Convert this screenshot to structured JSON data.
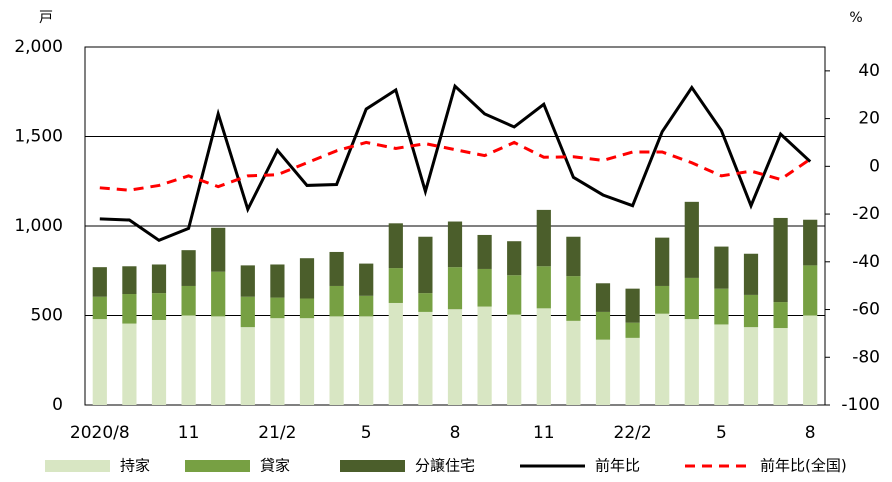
{
  "chart_data": {
    "type": "bar",
    "y_label": "戸",
    "y2_label": "%",
    "categories": [
      "2020/8",
      null,
      null,
      "11",
      null,
      null,
      "21/2",
      null,
      null,
      "5",
      null,
      null,
      "8",
      null,
      null,
      "11",
      null,
      null,
      "22/2",
      null,
      null,
      "5",
      null,
      null,
      "8"
    ],
    "series": [
      {
        "name": "持家",
        "color": "#d8e6c3",
        "values": [
          480,
          455,
          475,
          500,
          495,
          435,
          485,
          485,
          495,
          495,
          570,
          520,
          535,
          550,
          505,
          540,
          470,
          365,
          375,
          510,
          480,
          450,
          435,
          430,
          500
        ]
      },
      {
        "name": "貸家",
        "color": "#77a043",
        "values": [
          125,
          165,
          150,
          165,
          250,
          170,
          115,
          110,
          170,
          115,
          195,
          105,
          235,
          210,
          220,
          235,
          250,
          155,
          85,
          155,
          230,
          200,
          180,
          145,
          280
        ]
      },
      {
        "name": "分譲住宅",
        "color": "#4b5e2b",
        "values": [
          165,
          155,
          160,
          200,
          245,
          175,
          185,
          225,
          190,
          180,
          250,
          315,
          255,
          190,
          190,
          315,
          220,
          160,
          190,
          270,
          425,
          235,
          230,
          470,
          255
        ]
      },
      {
        "name": "前年比",
        "type": "line",
        "axis": "y2",
        "color": "#000000",
        "values": [
          -22,
          -22.5,
          -31,
          -26,
          22,
          -18,
          6.7,
          -8,
          -7.6,
          24,
          32,
          -10.5,
          33.6,
          22,
          16.5,
          26,
          -4.6,
          -12,
          -16.5,
          14.5,
          33,
          15,
          -16.5,
          13.5,
          2
        ]
      },
      {
        "name": "前年比(全国)",
        "type": "line",
        "axis": "y2",
        "dashed": true,
        "color": "#ff0000",
        "values": [
          -9,
          -10,
          -8,
          -4,
          -8.5,
          -4,
          -3.5,
          1.5,
          6.5,
          10,
          7.5,
          9.5,
          7,
          4.5,
          10,
          3.8,
          4,
          2.5,
          6,
          6,
          1.5,
          -4,
          -2,
          -5.5,
          3
        ]
      }
    ],
    "ylim": [
      0,
      2000
    ],
    "yticks": [
      0,
      500,
      {
        "value": 1000,
        "label": "1,000"
      },
      {
        "value": 1500,
        "label": "1,500"
      },
      {
        "value": 2000,
        "label": "2,000"
      }
    ],
    "y2lim": [
      -100,
      50
    ],
    "y2ticks": [
      -100,
      -80,
      -60,
      -40,
      -20,
      0,
      20,
      40
    ],
    "grid": true,
    "stacked": true,
    "legend": "bottom"
  }
}
